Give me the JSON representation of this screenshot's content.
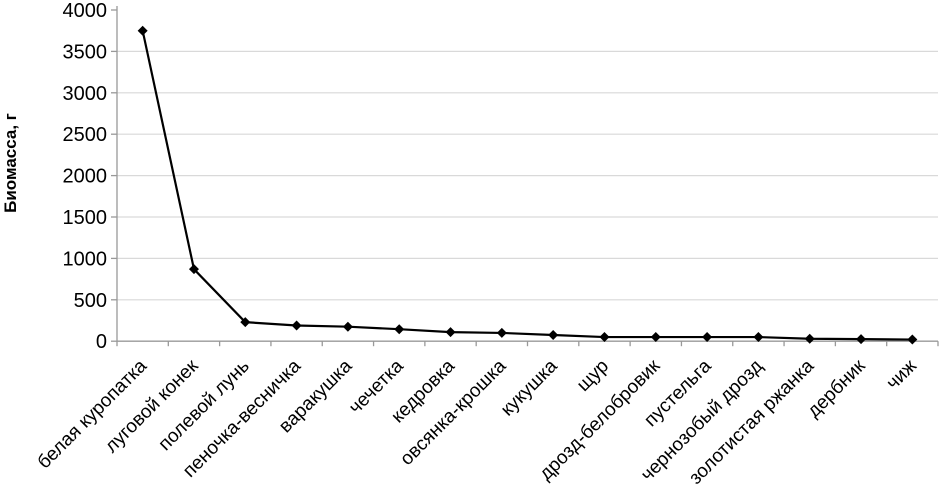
{
  "chart_data": {
    "type": "line",
    "title": "",
    "xlabel": "",
    "ylabel": "Биомасса, г",
    "categories": [
      "белая куропатка",
      "луговой конек",
      "полевой лунь",
      "пеночка-весничка",
      "варакушка",
      "чечетка",
      "кедровка",
      "овсянка-крошка",
      "кукушка",
      "щур",
      "дрозд-белобровик",
      "пустельга",
      "чернозобый дрозд",
      "золотистая ржанка",
      "дербник",
      "чиж"
    ],
    "values": [
      3750,
      870,
      230,
      190,
      175,
      145,
      110,
      100,
      75,
      50,
      50,
      50,
      50,
      30,
      25,
      20
    ],
    "ylim": [
      0,
      4000
    ],
    "ytick_step": 500,
    "ytick_labels": [
      "0",
      "500",
      "1000",
      "1500",
      "2000",
      "2500",
      "3000",
      "3500",
      "4000"
    ],
    "grid": "horizontal",
    "legend": "none",
    "marker": "diamond",
    "colors": {
      "line": "#000000",
      "marker": "#000000",
      "grid": "#d9d9d9",
      "axis": "#999999",
      "text": "#000000",
      "background": "#ffffff"
    }
  }
}
